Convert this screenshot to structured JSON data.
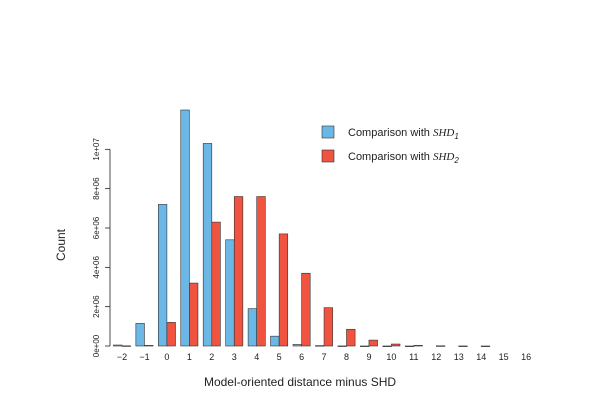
{
  "chart_data": {
    "type": "bar",
    "xlabel": "Model-oriented distance minus SHD",
    "ylabel": "Count",
    "categories": [
      "−2",
      "−1",
      "0",
      "1",
      "2",
      "3",
      "4",
      "5",
      "6",
      "7",
      "8",
      "9",
      "10",
      "11",
      "12",
      "13",
      "14",
      "15",
      "16"
    ],
    "ylim": [
      0,
      12000000
    ],
    "yticks": [
      0,
      2000000,
      4000000,
      6000000,
      8000000,
      10000000
    ],
    "ytick_labels": [
      "0e+00",
      "2e+06",
      "4e+06",
      "6e+06",
      "8e+06",
      "1e+07"
    ],
    "legend_position": "top-right",
    "grid": false,
    "series": [
      {
        "name": "Comparison with SHD",
        "name_main": "Comparison with ",
        "name_symbol": "SHD",
        "name_subscript": "1",
        "color": "#6BB7E6",
        "values": [
          50000,
          1150000,
          7200000,
          12000000,
          10300000,
          5400000,
          1900000,
          500000,
          80000,
          20000,
          5000,
          2000,
          1000,
          500,
          0,
          0,
          0,
          0,
          0
        ]
      },
      {
        "name": "Comparison with SHD",
        "name_main": "Comparison with ",
        "name_symbol": "SHD",
        "name_subscript": "2",
        "color": "#F0533F",
        "values": [
          10000,
          30000,
          1200000,
          3200000,
          6300000,
          7600000,
          7600000,
          5700000,
          3700000,
          1950000,
          850000,
          300000,
          100000,
          30000,
          10000,
          3000,
          1000,
          0,
          0
        ]
      }
    ]
  }
}
